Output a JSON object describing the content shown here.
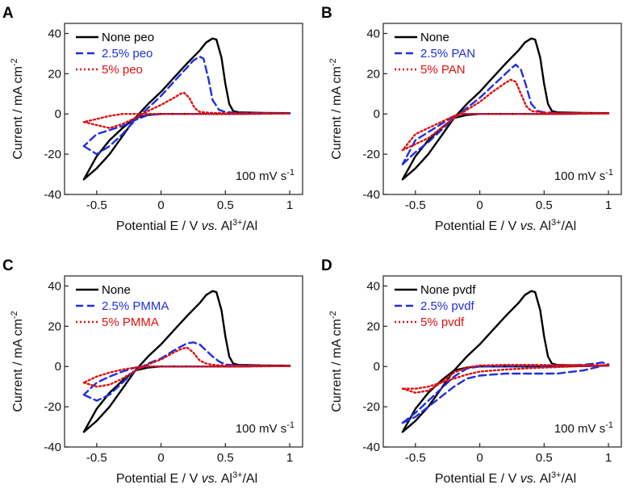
{
  "chart_data": [
    {
      "panel": "A",
      "type": "line",
      "xlabel": "Potential E / V vs. Al3+/Al",
      "ylabel": "Current / mA cm-2",
      "xlim": [
        -0.75,
        1.1
      ],
      "ylim": [
        -40,
        45
      ],
      "xticks": [
        -0.5,
        0.0,
        0.5,
        1.0
      ],
      "yticks": [
        -40,
        -20,
        0,
        20,
        40
      ],
      "annotation": "100 mV s-1",
      "legend_position": "top-left",
      "series": [
        {
          "name": "None peo",
          "color": "#000000",
          "dash": "solid",
          "x": [
            -0.6,
            -0.5,
            -0.4,
            -0.3,
            -0.2,
            -0.1,
            0.0,
            0.1,
            0.2,
            0.3,
            0.35,
            0.4,
            0.43,
            0.47,
            0.5,
            0.53,
            0.56,
            0.6,
            0.8,
            1.0,
            0.8,
            0.6,
            0.5,
            0.4,
            0.3,
            0.2,
            0.1,
            0.0,
            -0.1,
            -0.2,
            -0.3,
            -0.4,
            -0.5,
            -0.6
          ],
          "y": [
            -32.5,
            -27,
            -20,
            -11,
            -2,
            5,
            11,
            18,
            25,
            31.5,
            35.5,
            37.5,
            37,
            28,
            15,
            5,
            1.5,
            0.8,
            0.5,
            0.4,
            0.2,
            0,
            0,
            0,
            0,
            0,
            0,
            0,
            -0.5,
            -2,
            -7,
            -13,
            -21,
            -32.5
          ]
        },
        {
          "name": "2.5% peo",
          "color": "#1f2fe0",
          "dash": "dashed",
          "x": [
            -0.6,
            -0.5,
            -0.4,
            -0.3,
            -0.2,
            -0.1,
            0.0,
            0.1,
            0.2,
            0.25,
            0.3,
            0.33,
            0.37,
            0.4,
            0.45,
            0.5,
            0.6,
            1.0,
            0.6,
            0.4,
            0.2,
            0.0,
            -0.1,
            -0.2,
            -0.3,
            -0.4,
            -0.5,
            -0.6
          ],
          "y": [
            -16,
            -20,
            -16,
            -10,
            -3,
            3,
            9,
            16,
            23,
            26.5,
            28.5,
            27.5,
            17,
            7,
            2,
            1,
            0.5,
            0.3,
            0,
            0,
            0,
            0,
            -0.5,
            -3,
            -6,
            -8,
            -10,
            -16
          ]
        },
        {
          "name": "5% peo",
          "color": "#e01010",
          "dash": "dotted",
          "x": [
            -0.6,
            -0.5,
            -0.4,
            -0.3,
            -0.2,
            -0.1,
            0.0,
            0.1,
            0.15,
            0.18,
            0.22,
            0.26,
            0.3,
            0.4,
            0.6,
            1.0,
            0.6,
            0.3,
            0.0,
            -0.2,
            -0.3,
            -0.4,
            -0.5,
            -0.6
          ],
          "y": [
            -4,
            -5.5,
            -7,
            -5,
            -2,
            1.5,
            4.5,
            8,
            10,
            10.5,
            8,
            3,
            1,
            0.5,
            0.3,
            0.2,
            0,
            0,
            0,
            0,
            0,
            -1,
            -2.5,
            -4
          ]
        }
      ]
    },
    {
      "panel": "B",
      "type": "line",
      "xlabel": "Potential E / V vs. Al3+/Al",
      "ylabel": "Current / mA cm-2",
      "xlim": [
        -0.75,
        1.1
      ],
      "ylim": [
        -40,
        45
      ],
      "xticks": [
        -0.5,
        0.0,
        0.5,
        1.0
      ],
      "yticks": [
        -40,
        -20,
        0,
        20,
        40
      ],
      "annotation": "100 mV s-1",
      "legend_position": "top-left",
      "series": [
        {
          "name": "None",
          "color": "#000000",
          "dash": "solid",
          "x": [
            -0.6,
            -0.5,
            -0.4,
            -0.3,
            -0.2,
            -0.1,
            0.0,
            0.1,
            0.2,
            0.3,
            0.35,
            0.4,
            0.43,
            0.47,
            0.5,
            0.53,
            0.56,
            0.6,
            0.8,
            1.0,
            0.8,
            0.6,
            0.5,
            0.4,
            0.3,
            0.2,
            0.1,
            0.0,
            -0.1,
            -0.2,
            -0.3,
            -0.4,
            -0.5,
            -0.6
          ],
          "y": [
            -32.5,
            -27,
            -20,
            -11,
            -2,
            5,
            11,
            18,
            25,
            31.5,
            35.5,
            37.5,
            37,
            28,
            15,
            5,
            1.5,
            0.8,
            0.5,
            0.4,
            0.2,
            0,
            0,
            0,
            0,
            0,
            0,
            0,
            -0.5,
            -2,
            -7,
            -13,
            -21,
            -32.5
          ]
        },
        {
          "name": "2.5% PAN",
          "color": "#1f2fe0",
          "dash": "dashed",
          "x": [
            -0.6,
            -0.5,
            -0.4,
            -0.3,
            -0.2,
            -0.1,
            0.0,
            0.1,
            0.2,
            0.25,
            0.28,
            0.32,
            0.36,
            0.4,
            0.45,
            0.5,
            0.6,
            1.0,
            0.6,
            0.3,
            0.0,
            -0.15,
            -0.2,
            -0.3,
            -0.4,
            -0.5,
            -0.6
          ],
          "y": [
            -25,
            -19,
            -14,
            -8,
            -2,
            3,
            8,
            14,
            20,
            23,
            24.5,
            22,
            14,
            5,
            1.5,
            0.8,
            0.5,
            0.3,
            0,
            0,
            0,
            0,
            -1,
            -5,
            -9,
            -13,
            -25
          ]
        },
        {
          "name": "5% PAN",
          "color": "#e01010",
          "dash": "dotted",
          "x": [
            -0.6,
            -0.5,
            -0.4,
            -0.3,
            -0.2,
            -0.1,
            0.0,
            0.1,
            0.2,
            0.24,
            0.28,
            0.32,
            0.36,
            0.4,
            0.5,
            0.6,
            1.0,
            0.6,
            0.3,
            0.0,
            -0.15,
            -0.2,
            -0.3,
            -0.4,
            -0.5,
            -0.6
          ],
          "y": [
            -18,
            -15,
            -12,
            -7,
            -2,
            2,
            6,
            11,
            15.5,
            17,
            16,
            10,
            4,
            1.5,
            0.7,
            0.4,
            0.2,
            0,
            0,
            0,
            0,
            -1,
            -4,
            -7,
            -10,
            -18
          ]
        }
      ]
    },
    {
      "panel": "C",
      "type": "line",
      "xlabel": "Potential E / V vs. Al3+/Al",
      "ylabel": "Current / mA cm-2",
      "xlim": [
        -0.75,
        1.1
      ],
      "ylim": [
        -40,
        45
      ],
      "xticks": [
        -0.5,
        0.0,
        0.5,
        1.0
      ],
      "yticks": [
        -40,
        -20,
        0,
        20,
        40
      ],
      "annotation": "100 mV s-1",
      "legend_position": "top-left",
      "series": [
        {
          "name": "None",
          "color": "#000000",
          "dash": "solid",
          "x": [
            -0.6,
            -0.5,
            -0.4,
            -0.3,
            -0.2,
            -0.1,
            0.0,
            0.1,
            0.2,
            0.3,
            0.35,
            0.4,
            0.43,
            0.47,
            0.5,
            0.53,
            0.56,
            0.6,
            0.8,
            1.0,
            0.8,
            0.6,
            0.5,
            0.4,
            0.3,
            0.2,
            0.1,
            0.0,
            -0.1,
            -0.2,
            -0.3,
            -0.4,
            -0.5,
            -0.6
          ],
          "y": [
            -32.5,
            -27,
            -20,
            -11,
            -2,
            5,
            11,
            18,
            25,
            31.5,
            35.5,
            37.5,
            37,
            28,
            15,
            5,
            1.5,
            0.8,
            0.5,
            0.4,
            0.2,
            0,
            0,
            0,
            0,
            0,
            0,
            0,
            -0.5,
            -2,
            -7,
            -13,
            -21,
            -32.5
          ]
        },
        {
          "name": "2.5% PMMA",
          "color": "#1f2fe0",
          "dash": "dashed",
          "x": [
            -0.6,
            -0.5,
            -0.4,
            -0.3,
            -0.2,
            -0.1,
            0.0,
            0.1,
            0.2,
            0.25,
            0.3,
            0.35,
            0.4,
            0.45,
            0.5,
            0.6,
            1.0,
            0.6,
            0.3,
            0.0,
            -0.15,
            -0.2,
            -0.3,
            -0.4,
            -0.5,
            -0.6
          ],
          "y": [
            -14,
            -17,
            -14,
            -8,
            -2,
            1.5,
            4,
            8,
            11.5,
            12,
            11,
            8,
            5,
            2.5,
            1,
            0.5,
            0.3,
            0,
            0,
            0,
            0,
            -0.5,
            -2.5,
            -5,
            -8,
            -14
          ]
        },
        {
          "name": "5% PMMA",
          "color": "#e01010",
          "dash": "dotted",
          "x": [
            -0.6,
            -0.5,
            -0.4,
            -0.3,
            -0.2,
            -0.1,
            0.0,
            0.1,
            0.15,
            0.2,
            0.25,
            0.3,
            0.35,
            0.4,
            0.5,
            0.6,
            1.0,
            0.6,
            0.3,
            0.0,
            -0.15,
            -0.2,
            -0.3,
            -0.4,
            -0.5,
            -0.6
          ],
          "y": [
            -8,
            -10,
            -9,
            -6,
            -2,
            1,
            3.5,
            7,
            8.5,
            9.5,
            7,
            3,
            1.5,
            0.8,
            0.4,
            0.3,
            0.2,
            0,
            0,
            0,
            0,
            -0.5,
            -1.5,
            -3,
            -5,
            -8
          ]
        }
      ]
    },
    {
      "panel": "D",
      "type": "line",
      "xlabel": "Potential E / V vs. Al3+/Al",
      "ylabel": "Current / mA cm-2",
      "xlim": [
        -0.75,
        1.1
      ],
      "ylim": [
        -40,
        45
      ],
      "xticks": [
        -0.5,
        0.0,
        0.5,
        1.0
      ],
      "yticks": [
        -40,
        -20,
        0,
        20,
        40
      ],
      "annotation": "100 mV s-1",
      "legend_position": "top-left",
      "series": [
        {
          "name": "None pvdf",
          "color": "#000000",
          "dash": "solid",
          "x": [
            -0.6,
            -0.5,
            -0.4,
            -0.3,
            -0.2,
            -0.1,
            0.0,
            0.1,
            0.2,
            0.3,
            0.35,
            0.4,
            0.43,
            0.47,
            0.5,
            0.53,
            0.56,
            0.6,
            0.8,
            1.0,
            0.8,
            0.6,
            0.5,
            0.4,
            0.3,
            0.2,
            0.1,
            0.0,
            -0.1,
            -0.2,
            -0.3,
            -0.4,
            -0.5,
            -0.6
          ],
          "y": [
            -32.5,
            -27,
            -20,
            -11,
            -2,
            5,
            11,
            18,
            25,
            31.5,
            35.5,
            37.5,
            37,
            28,
            15,
            5,
            1.5,
            0.8,
            0.5,
            0.4,
            0.2,
            0,
            0,
            0,
            0,
            0,
            0,
            0,
            -0.5,
            -2,
            -7,
            -13,
            -21,
            -32.5
          ]
        },
        {
          "name": "2.5% pvdf",
          "color": "#1f2fe0",
          "dash": "dashed",
          "x": [
            -0.6,
            -0.5,
            -0.4,
            -0.3,
            -0.2,
            -0.1,
            0.0,
            0.2,
            0.4,
            0.6,
            0.8,
            0.9,
            0.95,
            1.0,
            0.9,
            0.8,
            0.6,
            0.4,
            0.2,
            0.1,
            0.0,
            -0.1,
            -0.2,
            -0.3,
            -0.4,
            -0.5,
            -0.6
          ],
          "y": [
            -28,
            -23,
            -17,
            -11,
            -5,
            -1,
            0,
            0.2,
            0.3,
            0.5,
            0.8,
            1.5,
            2,
            1,
            -0.5,
            -2,
            -3.5,
            -3.5,
            -3.5,
            -4,
            -4.5,
            -6,
            -10,
            -15,
            -20,
            -25,
            -28
          ]
        },
        {
          "name": "5% pvdf",
          "color": "#e01010",
          "dash": "dotted",
          "x": [
            -0.6,
            -0.5,
            -0.4,
            -0.3,
            -0.2,
            -0.1,
            0.0,
            0.2,
            0.4,
            0.6,
            0.8,
            1.0,
            0.8,
            0.6,
            0.4,
            0.2,
            0.1,
            0.0,
            -0.1,
            -0.2,
            -0.3,
            -0.4,
            -0.5,
            -0.6
          ],
          "y": [
            -11,
            -13,
            -12,
            -8,
            -3,
            -0.5,
            0.5,
            0.8,
            0.8,
            0.7,
            0.6,
            0.6,
            0.2,
            -0.3,
            -0.8,
            -1.5,
            -2,
            -2.5,
            -4,
            -6,
            -8,
            -10,
            -11,
            -11
          ]
        }
      ]
    }
  ]
}
